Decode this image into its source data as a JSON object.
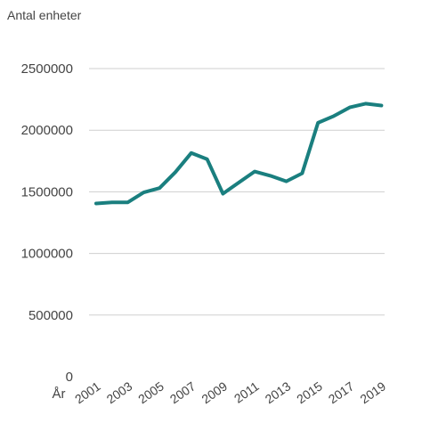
{
  "chart_data": {
    "type": "line",
    "title": "",
    "ylabel": "Antal enheter",
    "xlabel": "År",
    "ylim": [
      0,
      2500000
    ],
    "yticks": [
      0,
      500000,
      1000000,
      1500000,
      2000000,
      2500000
    ],
    "ytick_labels": [
      "0",
      "500000",
      "1000000",
      "1500000",
      "2000000",
      "2500000"
    ],
    "xtick_labels": [
      "2001",
      "2003",
      "2005",
      "2007",
      "2009",
      "2011",
      "2013",
      "2015",
      "2017",
      "2019"
    ],
    "grid": true,
    "x": [
      2001,
      2002,
      2003,
      2004,
      2005,
      2006,
      2007,
      2008,
      2009,
      2010,
      2011,
      2012,
      2013,
      2014,
      2015,
      2016,
      2017,
      2018,
      2019
    ],
    "series": [
      {
        "name": "",
        "color": "#1a7f7f",
        "values": [
          1405000,
          1415000,
          1415000,
          1495000,
          1530000,
          1660000,
          1815000,
          1765000,
          1485000,
          1575000,
          1665000,
          1630000,
          1585000,
          1650000,
          2060000,
          2115000,
          2185000,
          2215000,
          2200000
        ]
      }
    ]
  }
}
